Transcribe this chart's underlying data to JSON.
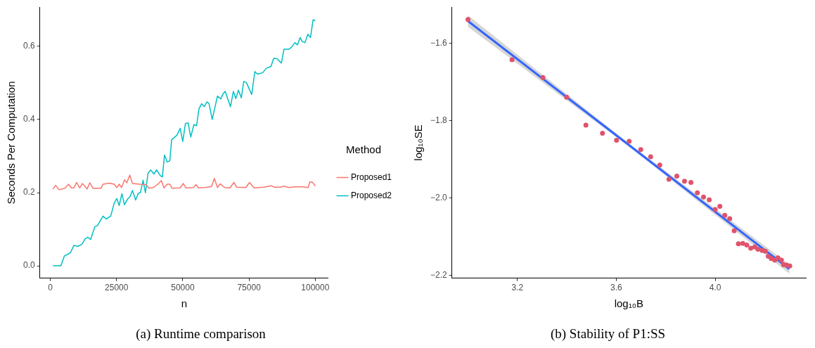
{
  "chart_data": [
    {
      "type": "line",
      "title": "(a) Runtime comparison",
      "xlabel": "n",
      "ylabel": "Seconds Per Computation",
      "legend_title": "Method",
      "legend": "right",
      "marker": "none",
      "line_style": "solid",
      "xlim": [
        -3950,
        104950
      ],
      "xticks": [
        0,
        25000,
        50000,
        75000,
        100000
      ],
      "ylim": [
        -0.034,
        0.707
      ],
      "yticks": [
        {
          "value": 0,
          "label": "0.0"
        },
        {
          "value": 0.2,
          "label": "0.2"
        },
        {
          "value": 0.4,
          "label": "0.4"
        },
        {
          "value": 0.6,
          "label": "0.6"
        }
      ],
      "series": [
        {
          "name": "Proposed1",
          "color": "#f8766d",
          "x": [
            1000,
            2000,
            3300,
            5500,
            6900,
            7900,
            8900,
            9900,
            11100,
            12100,
            13900,
            14900,
            16100,
            19100,
            19900,
            22300,
            24100,
            25100,
            26000,
            26900,
            28000,
            28900,
            30000,
            31000,
            33700,
            36100,
            37300,
            39100,
            40900,
            41900,
            42900,
            44100,
            45100,
            46000,
            49000,
            50200,
            51200,
            54000,
            55000,
            55900,
            58400,
            60900,
            61900,
            63100,
            64100,
            65800,
            67800,
            69300,
            70300,
            73800,
            75200,
            76900,
            80700,
            83300,
            84600,
            87100,
            88100,
            90100,
            92600,
            95500,
            97300,
            98000,
            99000,
            100000
          ],
          "values": [
            0.21,
            0.22,
            0.208,
            0.212,
            0.223,
            0.213,
            0.213,
            0.228,
            0.213,
            0.225,
            0.21,
            0.227,
            0.212,
            0.212,
            0.223,
            0.226,
            0.223,
            0.214,
            0.223,
            0.214,
            0.235,
            0.227,
            0.248,
            0.225,
            0.223,
            0.222,
            0.212,
            0.215,
            0.225,
            0.233,
            0.213,
            0.223,
            0.223,
            0.212,
            0.213,
            0.225,
            0.213,
            0.214,
            0.222,
            0.213,
            0.214,
            0.217,
            0.239,
            0.214,
            0.224,
            0.214,
            0.213,
            0.228,
            0.215,
            0.214,
            0.228,
            0.213,
            0.215,
            0.219,
            0.215,
            0.215,
            0.218,
            0.214,
            0.216,
            0.216,
            0.214,
            0.23,
            0.228,
            0.218
          ]
        },
        {
          "name": "Proposed2",
          "color": "#00bfc4",
          "x": [
            1000,
            4000,
            5300,
            6400,
            7600,
            8900,
            10400,
            11900,
            13200,
            14200,
            15200,
            16800,
            17800,
            19900,
            21100,
            22800,
            24100,
            25100,
            26000,
            27000,
            28000,
            29200,
            30000,
            31000,
            32200,
            33200,
            34000,
            35000,
            35900,
            36900,
            37900,
            39100,
            40100,
            41600,
            42300,
            43100,
            44100,
            45100,
            45800,
            47800,
            49000,
            50000,
            51000,
            52000,
            53000,
            54200,
            55200,
            56100,
            57100,
            58100,
            59100,
            59900,
            61100,
            63100,
            64300,
            65200,
            66000,
            68000,
            69100,
            70000,
            71000,
            72100,
            73000,
            74000,
            75300,
            76000,
            77200,
            78200,
            80200,
            81500,
            83300,
            84300,
            85600,
            87200,
            88200,
            90100,
            91100,
            92300,
            93300,
            94300,
            95100,
            96100,
            97200,
            98200,
            99200,
            100000
          ],
          "values": [
            0,
            0,
            0.027,
            0.031,
            0.036,
            0.056,
            0.053,
            0.059,
            0.074,
            0.078,
            0.072,
            0.107,
            0.11,
            0.136,
            0.128,
            0.136,
            0.171,
            0.184,
            0.165,
            0.197,
            0.167,
            0.183,
            0.188,
            0.206,
            0.18,
            0.198,
            0.2,
            0.234,
            0.2,
            0.254,
            0.262,
            0.251,
            0.262,
            0.246,
            0.243,
            0.303,
            0.284,
            0.287,
            0.345,
            0.357,
            0.376,
            0.34,
            0.389,
            0.391,
            0.352,
            0.386,
            0.383,
            0.429,
            0.443,
            0.435,
            0.448,
            0.444,
            0.4,
            0.464,
            0.456,
            0.47,
            0.477,
            0.435,
            0.477,
            0.457,
            0.48,
            0.459,
            0.504,
            0.501,
            0.48,
            0.468,
            0.531,
            0.524,
            0.528,
            0.54,
            0.545,
            0.567,
            0.566,
            0.554,
            0.592,
            0.592,
            0.598,
            0.61,
            0.604,
            0.624,
            0.613,
            0.61,
            0.633,
            0.624,
            0.673,
            0.669
          ]
        }
      ]
    },
    {
      "type": "scatter",
      "title": "(b) Stability of P1:SS",
      "xlabel": "log₁₀B",
      "ylabel": "log₁₀SE",
      "legend": false,
      "xlim": [
        2.935,
        4.367
      ],
      "xticks": [
        3.2,
        3.6,
        {
          "value": 4,
          "label": "4.0"
        }
      ],
      "ylim": [
        -2.207,
        -1.506
      ],
      "yticks": [
        {
          "value": -2.2,
          "label": "−2.2"
        },
        {
          "value": -2,
          "label": "−2.0"
        },
        {
          "value": -1.8,
          "label": "−1.8"
        },
        {
          "value": -1.6,
          "label": "−1.6"
        }
      ],
      "series": [
        {
          "color": "#df536b",
          "marker": "circle",
          "x": [
            3.0,
            3.178,
            3.303,
            3.399,
            3.477,
            3.544,
            3.601,
            3.652,
            3.699,
            3.739,
            3.776,
            3.813,
            3.845,
            3.876,
            3.902,
            3.928,
            3.953,
            3.976,
            4.0,
            4.019,
            4.039,
            4.059,
            4.077,
            4.094,
            4.112,
            4.128,
            4.144,
            4.16,
            4.173,
            4.19,
            4.203,
            4.215,
            4.227,
            4.241,
            4.254,
            4.268,
            4.277,
            4.289,
            4.302
          ],
          "values": [
            -1.538,
            -1.642,
            -1.688,
            -1.739,
            -1.811,
            -1.832,
            -1.85,
            -1.853,
            -1.874,
            -1.893,
            -1.914,
            -1.951,
            -1.943,
            -1.956,
            -1.959,
            -1.986,
            -1.997,
            -2.004,
            -2.029,
            -2.021,
            -2.044,
            -2.053,
            -2.084,
            -2.118,
            -2.117,
            -2.121,
            -2.129,
            -2.126,
            -2.132,
            -2.135,
            -2.137,
            -2.15,
            -2.156,
            -2.16,
            -2.154,
            -2.16,
            -2.172,
            -2.173,
            -2.175
          ]
        },
        {
          "type": "line",
          "marker": "none",
          "color": "#3366ff",
          "x": [
            3.0,
            3.65,
            4.3
          ],
          "values": [
            -1.542,
            -1.862,
            -2.183
          ],
          "lower": [
            -1.557,
            -1.866,
            -2.195
          ],
          "upper": [
            -1.527,
            -1.858,
            -2.171
          ]
        }
      ]
    }
  ]
}
